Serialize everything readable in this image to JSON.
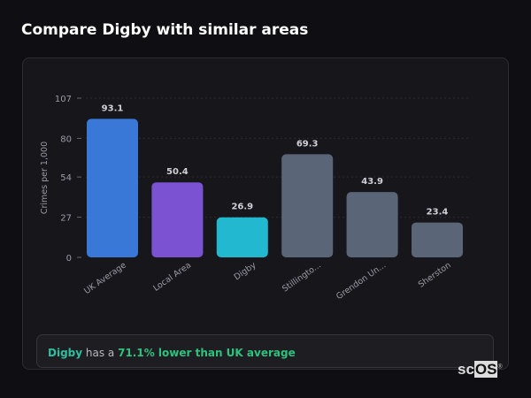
{
  "title": "Compare Digby with similar areas",
  "chart_data": {
    "type": "bar",
    "categories": [
      "UK Average",
      "Local Area",
      "Digby",
      "Stillingto...",
      "Grendon Un...",
      "Sherston"
    ],
    "values": [
      93.1,
      50.4,
      26.9,
      69.3,
      43.9,
      23.4
    ],
    "value_labels": [
      "93.1",
      "50.4",
      "26.9",
      "69.3",
      "43.9",
      "23.4"
    ],
    "colors": [
      "#3a78d8",
      "#7a52d2",
      "#22b8d0",
      "#5a6578",
      "#5a6578",
      "#5a6578"
    ],
    "ylabel": "Crimes per 1,000",
    "xlabel": "",
    "ylim": [
      0,
      107
    ],
    "yticks": [
      "0",
      "27",
      "54",
      "80",
      "107"
    ],
    "grid": true
  },
  "insight": {
    "area": "Digby",
    "middle": " has a ",
    "highlight": "71.1% lower than UK average"
  },
  "logo": {
    "text_a": "sc",
    "text_b": "OS",
    "mark": "®"
  }
}
